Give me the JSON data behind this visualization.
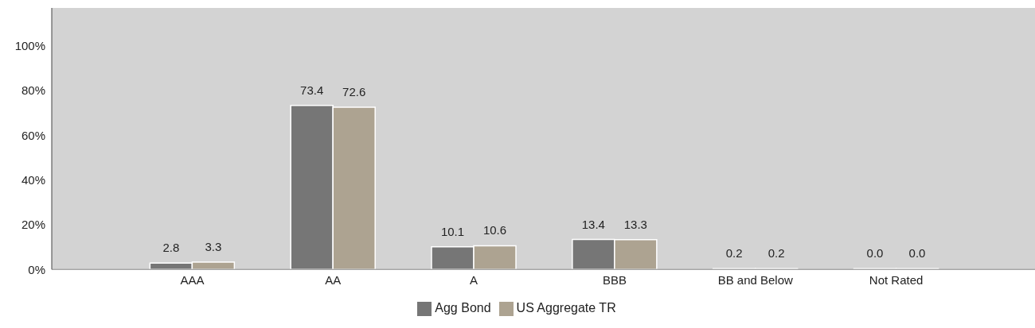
{
  "chart_data": {
    "type": "bar",
    "categories": [
      "AAA",
      "AA",
      "A",
      "BBB",
      "BB and Below",
      "Not Rated"
    ],
    "series": [
      {
        "name": "Agg Bond",
        "color": "#767676",
        "values": [
          2.8,
          73.4,
          10.1,
          13.4,
          0.2,
          0.0
        ],
        "value_labels": [
          "2.8",
          "73.4",
          "10.1",
          "13.4",
          "0.2",
          "0.0"
        ]
      },
      {
        "name": "US Aggregate TR",
        "color": "#ada391",
        "values": [
          3.3,
          72.6,
          10.6,
          13.3,
          0.2,
          0.0
        ],
        "value_labels": [
          "3.3",
          "72.6",
          "10.6",
          "13.3",
          "0.2",
          "0.0"
        ]
      }
    ],
    "ylim": [
      0,
      117
    ],
    "yticks": [
      {
        "value": 0,
        "label": "0%"
      },
      {
        "value": 20,
        "label": "20%"
      },
      {
        "value": 40,
        "label": "40%"
      },
      {
        "value": 60,
        "label": "60%"
      },
      {
        "value": 80,
        "label": "80%"
      },
      {
        "value": 100,
        "label": "100%"
      }
    ],
    "grid": false,
    "legend": "bottom"
  }
}
